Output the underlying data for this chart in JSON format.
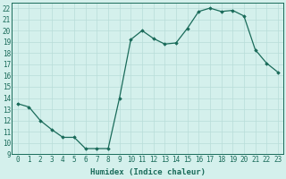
{
  "x": [
    0,
    1,
    2,
    3,
    4,
    5,
    6,
    7,
    8,
    9,
    10,
    11,
    12,
    13,
    14,
    15,
    16,
    17,
    18,
    19,
    20,
    21,
    22,
    23
  ],
  "y": [
    13.5,
    13.2,
    12.0,
    11.2,
    10.5,
    10.5,
    9.5,
    9.5,
    9.5,
    14.0,
    19.2,
    20.0,
    19.3,
    18.8,
    18.9,
    20.2,
    21.7,
    22.0,
    21.7,
    21.8,
    21.3,
    18.3,
    17.1,
    16.3
  ],
  "xlim": [
    -0.5,
    23.5
  ],
  "ylim": [
    9,
    22.5
  ],
  "yticks": [
    9,
    10,
    11,
    12,
    13,
    14,
    15,
    16,
    17,
    18,
    19,
    20,
    21,
    22
  ],
  "xticks": [
    0,
    1,
    2,
    3,
    4,
    5,
    6,
    7,
    8,
    9,
    10,
    11,
    12,
    13,
    14,
    15,
    16,
    17,
    18,
    19,
    20,
    21,
    22,
    23
  ],
  "xlabel": "Humidex (Indice chaleur)",
  "line_color": "#1a6b5a",
  "marker": "D",
  "marker_size": 1.8,
  "bg_color": "#d4f0ec",
  "grid_color": "#b8ddd8",
  "label_fontsize": 6.5,
  "tick_fontsize": 5.5
}
